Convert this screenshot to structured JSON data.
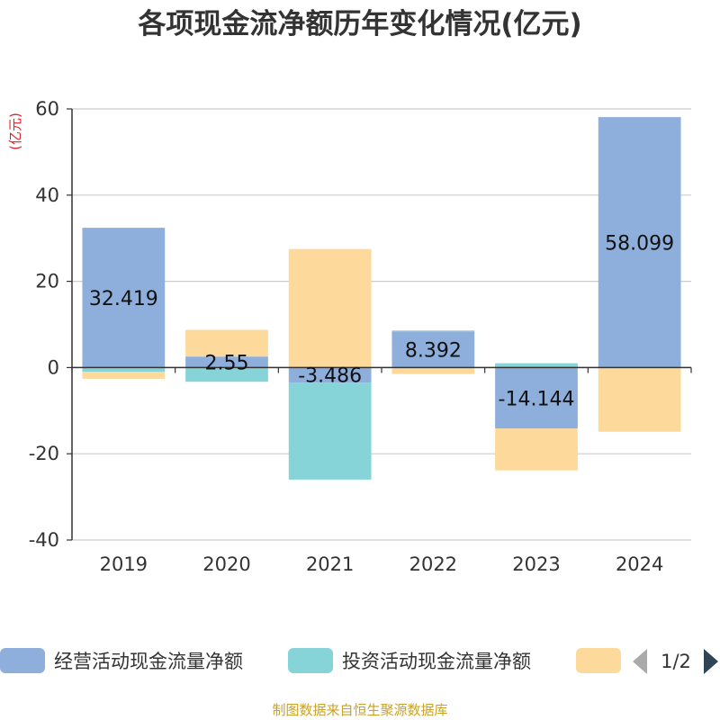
{
  "title": "各项现金流净额历年变化情况(亿元)",
  "unit_label": "(亿元)",
  "source": "制图数据来自恒生聚源数据库",
  "legend": {
    "items": [
      {
        "label": "经营活动现金流量净额",
        "color": "#8eaedb"
      },
      {
        "label": "投资活动现金流量净额",
        "color": "#86d3d8"
      },
      {
        "label": "",
        "color": "#fdd99b"
      }
    ],
    "pager": "1/2"
  },
  "chart_data": {
    "type": "bar",
    "stacked": true,
    "categories": [
      "2019",
      "2020",
      "2021",
      "2022",
      "2023",
      "2024"
    ],
    "series": [
      {
        "name": "经营活动现金流量净额",
        "color": "#8eaedb",
        "values": [
          32.419,
          2.55,
          -3.486,
          8.392,
          -14.144,
          58.099
        ],
        "labels": [
          "32.419",
          "2.55",
          "-3.486",
          "8.392",
          "-14.144",
          "58.099"
        ]
      },
      {
        "name": "投资活动现金流量净额",
        "color": "#86d3d8",
        "values": [
          -1.0,
          -3.3,
          -22.5,
          0.2,
          1.0,
          0.0
        ]
      },
      {
        "name": "",
        "color": "#fdd99b",
        "values": [
          -1.6,
          6.2,
          27.5,
          -1.5,
          -9.7,
          -14.9
        ]
      }
    ],
    "ylim": [
      -40,
      60
    ],
    "yticks": [
      -40,
      -20,
      0,
      20,
      40,
      60
    ],
    "grid": true,
    "legend_position": "bottom"
  }
}
